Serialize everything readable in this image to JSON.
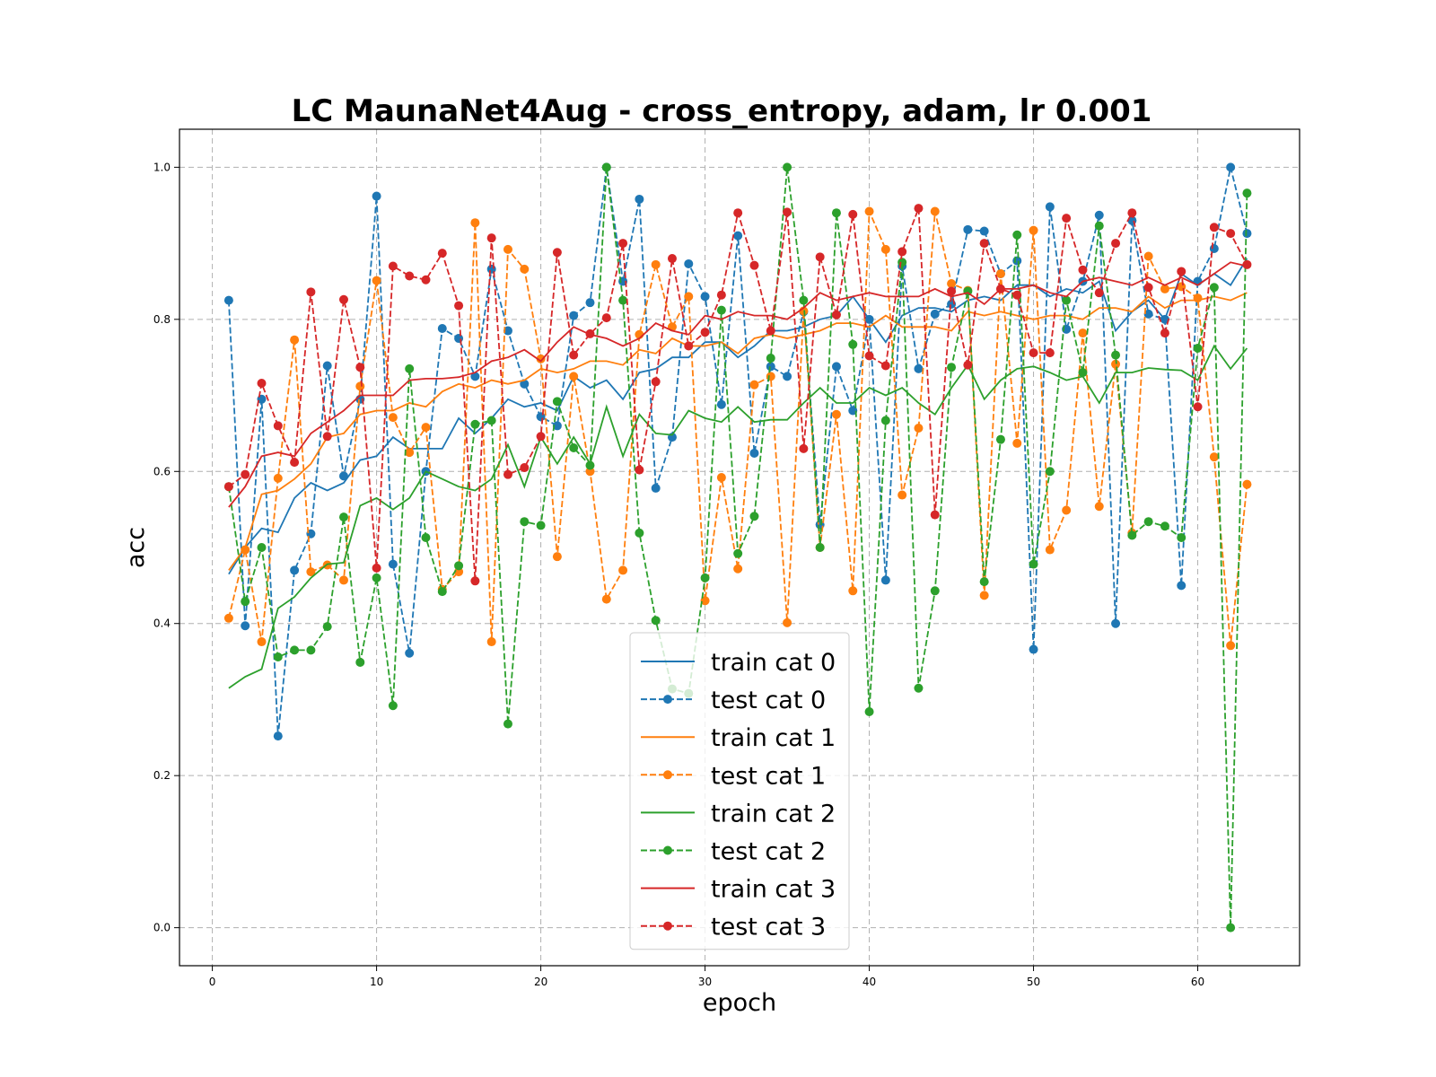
{
  "chart_data": {
    "type": "line",
    "title": "LC MaunaNet4Aug - cross_entropy, adam, lr 0.001",
    "xlabel": "epoch",
    "ylabel": "acc",
    "xlim": [
      -2,
      66.2
    ],
    "ylim": [
      -0.05,
      1.05
    ],
    "xticks": [
      0,
      10,
      20,
      30,
      40,
      50,
      60
    ],
    "yticks": [
      0.0,
      0.2,
      0.4,
      0.6,
      0.8,
      1.0
    ],
    "grid": true,
    "legend_placement": "lower-center",
    "series": [
      {
        "name": "train cat 0",
        "color": "#1f77b4",
        "style": "solid",
        "values": [
          0.465,
          0.5,
          0.525,
          0.52,
          0.565,
          0.585,
          0.575,
          0.585,
          0.615,
          0.62,
          0.645,
          0.63,
          0.63,
          0.63,
          0.67,
          0.65,
          0.67,
          0.695,
          0.685,
          0.69,
          0.68,
          0.725,
          0.71,
          0.72,
          0.695,
          0.73,
          0.735,
          0.75,
          0.75,
          0.77,
          0.77,
          0.75,
          0.765,
          0.785,
          0.785,
          0.79,
          0.8,
          0.805,
          0.83,
          0.8,
          0.77,
          0.805,
          0.815,
          0.815,
          0.81,
          0.825,
          0.83,
          0.825,
          0.845,
          0.845,
          0.83,
          0.84,
          0.835,
          0.85,
          0.785,
          0.81,
          0.825,
          0.8,
          0.86,
          0.845,
          0.86,
          0.845,
          0.88
        ]
      },
      {
        "name": "test cat 0",
        "color": "#1f77b4",
        "style": "dashed",
        "values": [
          0.825,
          0.397,
          0.695,
          0.252,
          0.47,
          0.518,
          0.739,
          0.594,
          0.695,
          0.962,
          0.478,
          0.361,
          0.6,
          0.788,
          0.775,
          0.725,
          0.866,
          0.785,
          0.715,
          0.672,
          0.66,
          0.805,
          0.822,
          1.0,
          0.85,
          0.958,
          0.578,
          0.645,
          0.873,
          0.83,
          0.688,
          0.91,
          0.624,
          0.738,
          0.725,
          0.81,
          0.53,
          0.738,
          0.68,
          0.8,
          0.457,
          0.87,
          0.735,
          0.807,
          0.82,
          0.918,
          0.916,
          0.86,
          0.877,
          0.366,
          0.948,
          0.787,
          0.85,
          0.937,
          0.4,
          0.93,
          0.807,
          0.8,
          0.45,
          0.85,
          0.893,
          1.0,
          0.913
        ]
      },
      {
        "name": "train cat 1",
        "color": "#ff7f0e",
        "style": "solid",
        "values": [
          0.47,
          0.5,
          0.57,
          0.575,
          0.59,
          0.61,
          0.645,
          0.65,
          0.675,
          0.68,
          0.68,
          0.69,
          0.685,
          0.705,
          0.715,
          0.71,
          0.72,
          0.715,
          0.72,
          0.735,
          0.73,
          0.735,
          0.745,
          0.745,
          0.74,
          0.76,
          0.755,
          0.775,
          0.765,
          0.765,
          0.77,
          0.755,
          0.775,
          0.78,
          0.775,
          0.78,
          0.785,
          0.795,
          0.795,
          0.79,
          0.805,
          0.79,
          0.79,
          0.79,
          0.785,
          0.81,
          0.805,
          0.81,
          0.805,
          0.8,
          0.805,
          0.805,
          0.8,
          0.815,
          0.815,
          0.81,
          0.83,
          0.815,
          0.825,
          0.825,
          0.83,
          0.825,
          0.835
        ]
      },
      {
        "name": "test cat 1",
        "color": "#ff7f0e",
        "style": "dashed",
        "values": [
          0.407,
          0.497,
          0.376,
          0.591,
          0.773,
          0.468,
          0.477,
          0.457,
          0.712,
          0.851,
          0.671,
          0.625,
          0.658,
          0.445,
          0.468,
          0.927,
          0.376,
          0.892,
          0.866,
          0.748,
          0.488,
          0.725,
          0.6,
          0.432,
          0.47,
          0.78,
          0.872,
          0.79,
          0.83,
          0.43,
          0.592,
          0.472,
          0.714,
          0.725,
          0.401,
          0.811,
          0.5,
          0.675,
          0.443,
          0.942,
          0.892,
          0.569,
          0.657,
          0.942,
          0.847,
          0.838,
          0.437,
          0.86,
          0.637,
          0.917,
          0.497,
          0.549,
          0.782,
          0.554,
          0.741,
          0.519,
          0.883,
          0.84,
          0.843,
          0.828,
          0.619,
          0.371,
          0.583
        ]
      },
      {
        "name": "train cat 2",
        "color": "#2ca02c",
        "style": "solid",
        "values": [
          0.315,
          0.33,
          0.34,
          0.42,
          0.435,
          0.46,
          0.478,
          0.48,
          0.555,
          0.565,
          0.55,
          0.565,
          0.6,
          0.59,
          0.58,
          0.575,
          0.59,
          0.635,
          0.58,
          0.645,
          0.61,
          0.645,
          0.61,
          0.685,
          0.62,
          0.675,
          0.65,
          0.648,
          0.68,
          0.67,
          0.665,
          0.685,
          0.665,
          0.668,
          0.668,
          0.69,
          0.71,
          0.69,
          0.69,
          0.71,
          0.7,
          0.71,
          0.69,
          0.675,
          0.71,
          0.74,
          0.695,
          0.72,
          0.735,
          0.738,
          0.73,
          0.72,
          0.725,
          0.69,
          0.73,
          0.73,
          0.736,
          0.734,
          0.733,
          0.72,
          0.765,
          0.735,
          0.762
        ]
      },
      {
        "name": "test cat 2",
        "color": "#2ca02c",
        "style": "dashed",
        "values": [
          0.58,
          0.429,
          0.5,
          0.356,
          0.365,
          0.365,
          0.396,
          0.54,
          0.349,
          0.46,
          0.292,
          0.735,
          0.513,
          0.442,
          0.476,
          0.662,
          0.667,
          0.268,
          0.534,
          0.529,
          0.692,
          0.631,
          0.608,
          1.0,
          0.825,
          0.519,
          0.404,
          0.314,
          0.308,
          0.46,
          0.812,
          0.492,
          0.541,
          0.749,
          1.0,
          0.825,
          0.5,
          0.94,
          0.767,
          0.284,
          0.667,
          0.875,
          0.315,
          0.443,
          0.737,
          0.837,
          0.455,
          0.642,
          0.911,
          0.478,
          0.6,
          0.825,
          0.73,
          0.923,
          0.753,
          0.516,
          0.534,
          0.528,
          0.513,
          0.762,
          0.842,
          0.0,
          0.966
        ]
      },
      {
        "name": "train cat 3",
        "color": "#d62728",
        "style": "solid",
        "values": [
          0.553,
          0.58,
          0.62,
          0.625,
          0.62,
          0.65,
          0.665,
          0.68,
          0.7,
          0.7,
          0.7,
          0.72,
          0.722,
          0.722,
          0.724,
          0.73,
          0.745,
          0.75,
          0.76,
          0.745,
          0.77,
          0.79,
          0.78,
          0.775,
          0.765,
          0.775,
          0.795,
          0.785,
          0.78,
          0.805,
          0.8,
          0.81,
          0.805,
          0.805,
          0.8,
          0.815,
          0.835,
          0.825,
          0.83,
          0.835,
          0.83,
          0.83,
          0.83,
          0.84,
          0.83,
          0.835,
          0.82,
          0.84,
          0.84,
          0.845,
          0.835,
          0.83,
          0.85,
          0.855,
          0.85,
          0.845,
          0.855,
          0.845,
          0.855,
          0.845,
          0.86,
          0.875,
          0.87
        ]
      },
      {
        "name": "test cat 3",
        "color": "#d62728",
        "style": "dashed",
        "values": [
          0.58,
          0.596,
          0.716,
          0.66,
          0.612,
          0.836,
          0.646,
          0.826,
          0.737,
          0.473,
          0.87,
          0.857,
          0.852,
          0.887,
          0.818,
          0.456,
          0.907,
          0.596,
          0.605,
          0.646,
          0.888,
          0.753,
          0.781,
          0.802,
          0.9,
          0.602,
          0.718,
          0.88,
          0.765,
          0.783,
          0.832,
          0.94,
          0.871,
          0.785,
          0.941,
          0.63,
          0.882,
          0.806,
          0.938,
          0.752,
          0.739,
          0.889,
          0.946,
          0.543,
          0.837,
          0.74,
          0.9,
          0.84,
          0.832,
          0.756,
          0.756,
          0.933,
          0.865,
          0.835,
          0.9,
          0.94,
          0.842,
          0.782,
          0.863,
          0.685,
          0.921,
          0.913,
          0.872
        ]
      }
    ]
  }
}
